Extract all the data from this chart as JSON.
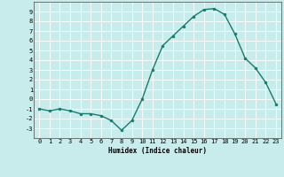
{
  "x": [
    0,
    1,
    2,
    3,
    4,
    5,
    6,
    7,
    8,
    9,
    10,
    11,
    12,
    13,
    14,
    15,
    16,
    17,
    18,
    19,
    20,
    21,
    22,
    23
  ],
  "y": [
    -1,
    -1.2,
    -1,
    -1.2,
    -1.5,
    -1.5,
    -1.7,
    -2.2,
    -3.2,
    -2.2,
    0,
    3,
    5.5,
    6.5,
    7.5,
    8.5,
    9.2,
    9.3,
    8.7,
    6.7,
    4.2,
    3.2,
    1.7,
    -0.5
  ],
  "line_color": "#1a7a6e",
  "marker_color": "#1a7a6e",
  "bg_color": "#c8ecec",
  "grid_color": "#e0f0f0",
  "axis_bg_color": "#c8ecec",
  "xlabel": "Humidex (Indice chaleur)",
  "ylim": [
    -4,
    10
  ],
  "xlim": [
    -0.5,
    23.5
  ],
  "yticks": [
    -3,
    -2,
    -1,
    0,
    1,
    2,
    3,
    4,
    5,
    6,
    7,
    8,
    9
  ],
  "xticks": [
    0,
    1,
    2,
    3,
    4,
    5,
    6,
    7,
    8,
    9,
    10,
    11,
    12,
    13,
    14,
    15,
    16,
    17,
    18,
    19,
    20,
    21,
    22,
    23
  ],
  "xlabel_fontsize": 5.5,
  "tick_fontsize": 5,
  "linewidth": 1.0,
  "markersize": 2.0
}
